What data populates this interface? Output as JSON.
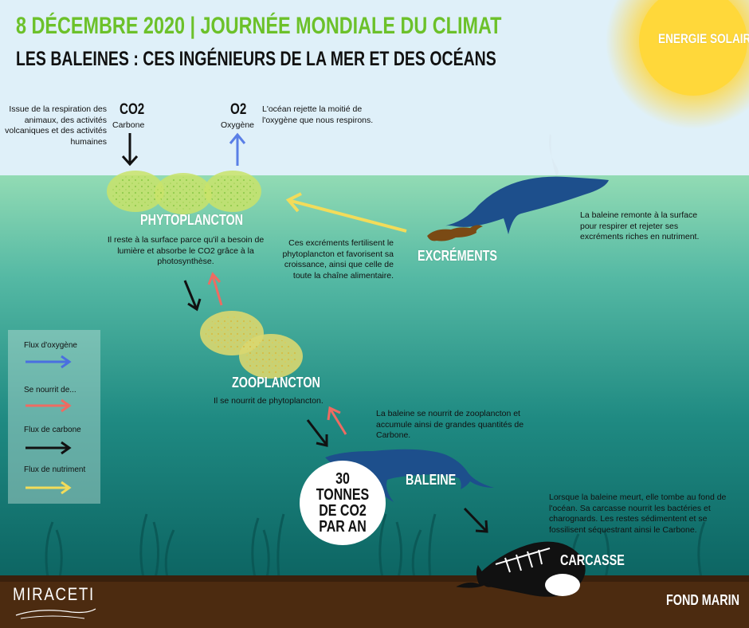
{
  "header": {
    "title": "8 DÉCEMBRE 2020 | JOURNÉE MONDIALE DU CLIMAT",
    "subtitle": "LES BALEINES : CES INGÉNIEURS DE LA MER ET DES OCÉANS"
  },
  "sun": {
    "label": "ENERGIE SOLAIRE"
  },
  "co2": {
    "formula": "CO2",
    "name": "Carbone",
    "source_text": "Issue de la respiration des animaux, des activités volcaniques et des activités humaines"
  },
  "o2": {
    "formula": "O2",
    "name": "Oxygène",
    "note": "L'océan rejette la moitié de l'oxygène que nous respirons."
  },
  "phytoplancton": {
    "label": "PHYTOPLANCTON",
    "desc": "Il reste à la surface parce qu'il a besoin de lumière et absorbe le CO2 grâce à la photosynthèse."
  },
  "excrements": {
    "label": "EXCRÉMENTS",
    "desc": "Ces  excréments fertilisent le phytoplancton et favorisent sa croissance, ainsi que celle de toute la chaîne alimentaire."
  },
  "surface_whale": {
    "desc": "La baleine remonte à la surface pour respirer et rejeter ses excréments riches en nutriment."
  },
  "zooplancton": {
    "label": "ZOOPLANCTON",
    "desc": "Il se nourrit de phytoplancton."
  },
  "baleine": {
    "label": "BALEINE",
    "desc": "La baleine se nourrit de zooplancton et accumule ainsi de grandes quantités de Carbone."
  },
  "badge": {
    "text": "30 TONNES\nDE CO2\nPAR AN"
  },
  "carcasse": {
    "label": "CARCASSE",
    "desc": "Lorsque la baleine meurt, elle tombe au fond de l'océan. Sa carcasse nourrit les bactéries et charognards. Les restes sédimentent et se fossilisent séquestrant ainsi le Carbone."
  },
  "fond_marin": {
    "label": "FOND MARIN"
  },
  "legend": {
    "items": [
      {
        "label": "Flux d'oxygène",
        "color": "#4a6fe0"
      },
      {
        "label": "Se nourrit de...",
        "color": "#ee6b62"
      },
      {
        "label": "Flux de carbone",
        "color": "#111111"
      },
      {
        "label": "Flux de nutriment",
        "color": "#f2dc5a"
      }
    ]
  },
  "logo": {
    "text": "MIRACETI"
  },
  "colors": {
    "sky": "#dbeef8",
    "sea_top": "#8fd8b0",
    "sea_bottom": "#0e6e6a",
    "seabed": "#4a2a10",
    "title_green": "#6cc12a",
    "whale": "#1d4f8c"
  }
}
